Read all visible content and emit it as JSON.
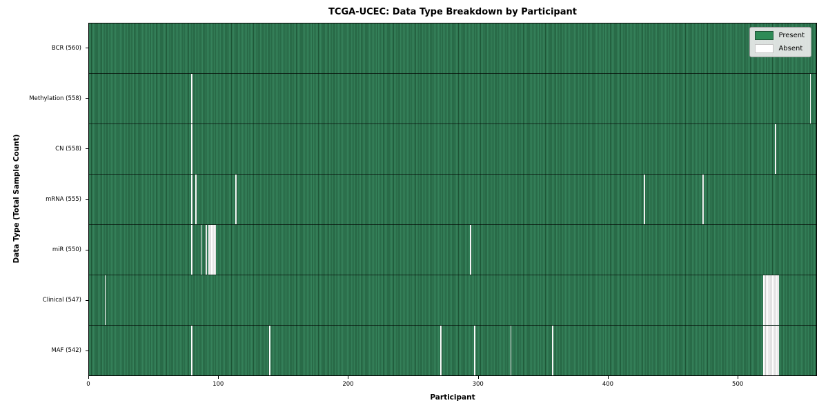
{
  "figure": {
    "title": "TCGA-UCEC: Data Type Breakdown by Participant",
    "xlabel": "Participant",
    "ylabel": "Data Type (Total Sample Count)"
  },
  "chart_data": {
    "type": "heatmap",
    "title": "TCGA-UCEC: Data Type Breakdown by Participant",
    "xlabel": "Participant",
    "ylabel": "Data Type (Total Sample Count)",
    "n_participants": 560,
    "xlim": [
      0,
      561
    ],
    "x_ticks": [
      0,
      100,
      200,
      300,
      400,
      500
    ],
    "grid": false,
    "legend_position": "upper right",
    "legend_items": [
      {
        "label": "Present",
        "color": "#2e8b57"
      },
      {
        "label": "Absent",
        "color": "#ffffff"
      }
    ],
    "colors": {
      "present": "#2e8b57",
      "present_edge": "#1d5536",
      "absent": "#ffffff"
    },
    "rows": [
      {
        "name": "BCR",
        "label": "BCR (560)",
        "count": 560,
        "absent_runs": []
      },
      {
        "name": "Methylation",
        "label": "Methylation (558)",
        "count": 558,
        "absent_runs": [
          [
            79,
            1
          ],
          [
            556,
            1
          ]
        ]
      },
      {
        "name": "CN",
        "label": "CN (558)",
        "count": 558,
        "absent_runs": [
          [
            79,
            1
          ],
          [
            529,
            1
          ]
        ]
      },
      {
        "name": "mRNA",
        "label": "mRNA (555)",
        "count": 555,
        "absent_runs": [
          [
            79,
            1
          ],
          [
            82,
            1
          ],
          [
            113,
            1
          ],
          [
            428,
            1
          ],
          [
            473,
            1
          ]
        ]
      },
      {
        "name": "miR",
        "label": "miR (550)",
        "count": 550,
        "absent_runs": [
          [
            79,
            1
          ],
          [
            86,
            1
          ],
          [
            90,
            1
          ],
          [
            92,
            6
          ],
          [
            294,
            1
          ]
        ]
      },
      {
        "name": "Clinical",
        "label": "Clinical (547)",
        "count": 547,
        "absent_runs": [
          [
            12,
            1
          ],
          [
            520,
            12
          ]
        ]
      },
      {
        "name": "MAF",
        "label": "MAF (542)",
        "count": 542,
        "absent_runs": [
          [
            79,
            1
          ],
          [
            139,
            1
          ],
          [
            271,
            1
          ],
          [
            297,
            1
          ],
          [
            325,
            1
          ],
          [
            357,
            1
          ],
          [
            520,
            12
          ]
        ]
      }
    ]
  }
}
